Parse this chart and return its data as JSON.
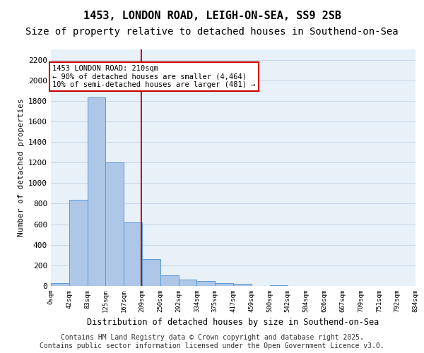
{
  "title_line1": "1453, LONDON ROAD, LEIGH-ON-SEA, SS9 2SB",
  "title_line2": "Size of property relative to detached houses in Southend-on-Sea",
  "xlabel": "Distribution of detached houses by size in Southend-on-Sea",
  "ylabel": "Number of detached properties",
  "bin_labels": [
    "0sqm",
    "42sqm",
    "83sqm",
    "125sqm",
    "167sqm",
    "209sqm",
    "250sqm",
    "292sqm",
    "334sqm",
    "375sqm",
    "417sqm",
    "459sqm",
    "500sqm",
    "542sqm",
    "584sqm",
    "626sqm",
    "667sqm",
    "709sqm",
    "751sqm",
    "792sqm",
    "834sqm"
  ],
  "bar_values": [
    30,
    840,
    1830,
    1200,
    620,
    260,
    100,
    60,
    50,
    30,
    20,
    0,
    10,
    0,
    0,
    0,
    0,
    0,
    0,
    0
  ],
  "bar_color": "#aec6e8",
  "bar_edge_color": "#5b9bd5",
  "vline_x": 4.98,
  "vline_color": "#cc0000",
  "annotation_text": "1453 LONDON ROAD: 210sqm\n← 90% of detached houses are smaller (4,464)\n10% of semi-detached houses are larger (481) →",
  "annotation_box_color": "#cc0000",
  "ylim": [
    0,
    2300
  ],
  "yticks": [
    0,
    200,
    400,
    600,
    800,
    1000,
    1200,
    1400,
    1600,
    1800,
    2000,
    2200
  ],
  "grid_color": "#c8d8e8",
  "bg_color": "#e8f0f8",
  "footer_line1": "Contains HM Land Registry data © Crown copyright and database right 2025.",
  "footer_line2": "Contains public sector information licensed under the Open Government Licence v3.0.",
  "title_fontsize": 11,
  "subtitle_fontsize": 10,
  "footer_fontsize": 7
}
